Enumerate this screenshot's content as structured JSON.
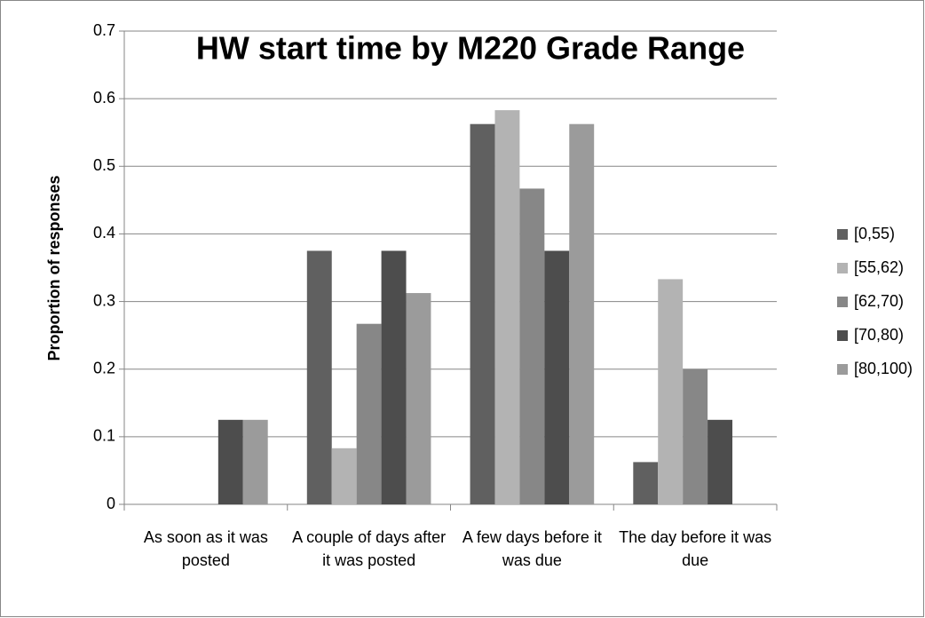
{
  "chart_data": {
    "type": "bar",
    "title": "HW start time by M220 Grade Range",
    "y_label": "Proportion of responses",
    "categories": [
      "As soon as it was posted",
      "A couple of days after it was posted",
      "A few days before it was due",
      "The day before it was due"
    ],
    "series": [
      {
        "name": "[0,55)",
        "color": "#606060",
        "values": [
          0,
          0.375,
          0.5625,
          0.0625
        ]
      },
      {
        "name": "[55,62)",
        "color": "#b3b3b3",
        "values": [
          0,
          0.083,
          0.583,
          0.333
        ]
      },
      {
        "name": "[62,70)",
        "color": "#878787",
        "values": [
          0,
          0.267,
          0.467,
          0.2
        ]
      },
      {
        "name": "[70,80)",
        "color": "#4d4d4d",
        "values": [
          0.125,
          0.375,
          0.375,
          0.125
        ]
      },
      {
        "name": "[80,100)",
        "color": "#9b9b9b",
        "values": [
          0.125,
          0.3125,
          0.5625,
          0
        ]
      }
    ],
    "ylim": [
      0,
      0.7
    ],
    "yticks": [
      0,
      0.1,
      0.2,
      0.3,
      0.4,
      0.5,
      0.6,
      0.7
    ],
    "grid": true,
    "legend": "right"
  }
}
